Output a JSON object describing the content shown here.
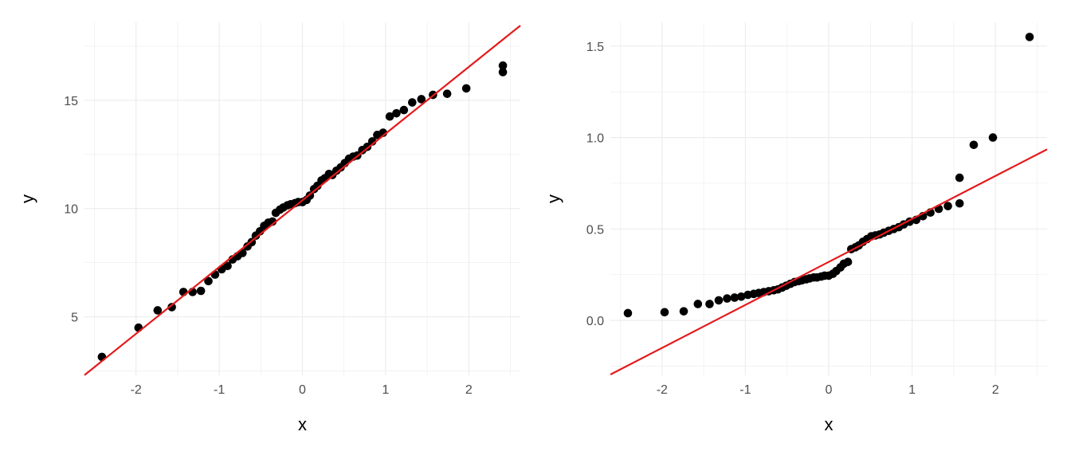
{
  "chart_data": [
    {
      "type": "scatter",
      "title": "",
      "xlabel": "x",
      "ylabel": "y",
      "xlim": [
        -2.62,
        2.62
      ],
      "ylim": [
        2.3,
        18.6
      ],
      "xticks": [
        -2,
        -1,
        0,
        1,
        2
      ],
      "xtick_labels": [
        "-2",
        "-1",
        "0",
        "1",
        "2"
      ],
      "yticks": [
        5,
        10,
        15
      ],
      "ytick_labels": [
        "5",
        "10",
        "15"
      ],
      "grid": true,
      "legend": "none",
      "point_color": "#000000",
      "line_color": "#e41a1c",
      "reference_line": {
        "intercept": 10.38,
        "slope": 3.08
      },
      "points": [
        [
          -2.41,
          3.15
        ],
        [
          -1.97,
          4.5
        ],
        [
          -1.74,
          5.3
        ],
        [
          -1.57,
          5.45
        ],
        [
          -1.43,
          6.15
        ],
        [
          -1.32,
          6.15
        ],
        [
          -1.22,
          6.2
        ],
        [
          -1.13,
          6.65
        ],
        [
          -1.05,
          6.95
        ],
        [
          -0.97,
          7.2
        ],
        [
          -0.9,
          7.35
        ],
        [
          -0.84,
          7.65
        ],
        [
          -0.78,
          7.8
        ],
        [
          -0.72,
          7.95
        ],
        [
          -0.66,
          8.25
        ],
        [
          -0.61,
          8.45
        ],
        [
          -0.56,
          8.75
        ],
        [
          -0.51,
          8.95
        ],
        [
          -0.46,
          9.2
        ],
        [
          -0.41,
          9.35
        ],
        [
          -0.36,
          9.4
        ],
        [
          -0.32,
          9.8
        ],
        [
          -0.27,
          9.95
        ],
        [
          -0.23,
          10.05
        ],
        [
          -0.18,
          10.15
        ],
        [
          -0.14,
          10.2
        ],
        [
          -0.09,
          10.25
        ],
        [
          -0.05,
          10.3
        ],
        [
          0.0,
          10.3
        ],
        [
          0.05,
          10.4
        ],
        [
          0.09,
          10.6
        ],
        [
          0.14,
          10.9
        ],
        [
          0.18,
          11.05
        ],
        [
          0.23,
          11.3
        ],
        [
          0.27,
          11.4
        ],
        [
          0.32,
          11.6
        ],
        [
          0.36,
          11.55
        ],
        [
          0.41,
          11.75
        ],
        [
          0.46,
          11.9
        ],
        [
          0.51,
          12.1
        ],
        [
          0.56,
          12.3
        ],
        [
          0.61,
          12.4
        ],
        [
          0.66,
          12.45
        ],
        [
          0.72,
          12.7
        ],
        [
          0.78,
          12.85
        ],
        [
          0.84,
          13.1
        ],
        [
          0.9,
          13.4
        ],
        [
          0.97,
          13.5
        ],
        [
          1.05,
          14.25
        ],
        [
          1.13,
          14.4
        ],
        [
          1.22,
          14.55
        ],
        [
          1.32,
          14.9
        ],
        [
          1.43,
          15.05
        ],
        [
          1.57,
          15.25
        ],
        [
          1.74,
          15.3
        ],
        [
          1.97,
          15.55
        ],
        [
          2.41,
          16.3
        ],
        [
          2.41,
          16.6
        ]
      ]
    },
    {
      "type": "scatter",
      "title": "",
      "xlabel": "x",
      "ylabel": "y",
      "xlim": [
        -2.62,
        2.62
      ],
      "ylim": [
        -0.3,
        1.63
      ],
      "xticks": [
        -2,
        -1,
        0,
        1,
        2
      ],
      "xtick_labels": [
        "-2",
        "-1",
        "0",
        "1",
        "2"
      ],
      "yticks": [
        0.0,
        0.5,
        1.0,
        1.5
      ],
      "ytick_labels": [
        "0.0",
        "0.5",
        "1.0",
        "1.5"
      ],
      "grid": true,
      "legend": "none",
      "point_color": "#000000",
      "line_color": "#e41a1c",
      "reference_line": {
        "intercept": 0.32,
        "slope": 0.235
      },
      "points": [
        [
          -2.41,
          0.04
        ],
        [
          -1.97,
          0.045
        ],
        [
          -1.74,
          0.05
        ],
        [
          -1.57,
          0.09
        ],
        [
          -1.43,
          0.09
        ],
        [
          -1.32,
          0.11
        ],
        [
          -1.22,
          0.12
        ],
        [
          -1.13,
          0.125
        ],
        [
          -1.05,
          0.13
        ],
        [
          -0.97,
          0.14
        ],
        [
          -0.9,
          0.145
        ],
        [
          -0.84,
          0.15
        ],
        [
          -0.78,
          0.155
        ],
        [
          -0.72,
          0.16
        ],
        [
          -0.66,
          0.165
        ],
        [
          -0.61,
          0.17
        ],
        [
          -0.56,
          0.18
        ],
        [
          -0.51,
          0.19
        ],
        [
          -0.46,
          0.2
        ],
        [
          -0.41,
          0.21
        ],
        [
          -0.36,
          0.215
        ],
        [
          -0.32,
          0.22
        ],
        [
          -0.27,
          0.225
        ],
        [
          -0.23,
          0.23
        ],
        [
          -0.18,
          0.235
        ],
        [
          -0.14,
          0.235
        ],
        [
          -0.09,
          0.24
        ],
        [
          -0.05,
          0.245
        ],
        [
          0.0,
          0.245
        ],
        [
          0.05,
          0.255
        ],
        [
          0.09,
          0.27
        ],
        [
          0.14,
          0.29
        ],
        [
          0.18,
          0.31
        ],
        [
          0.23,
          0.32
        ],
        [
          0.27,
          0.39
        ],
        [
          0.32,
          0.4
        ],
        [
          0.36,
          0.41
        ],
        [
          0.41,
          0.43
        ],
        [
          0.46,
          0.445
        ],
        [
          0.51,
          0.46
        ],
        [
          0.56,
          0.465
        ],
        [
          0.61,
          0.47
        ],
        [
          0.66,
          0.48
        ],
        [
          0.72,
          0.49
        ],
        [
          0.78,
          0.5
        ],
        [
          0.84,
          0.51
        ],
        [
          0.9,
          0.525
        ],
        [
          0.97,
          0.54
        ],
        [
          1.05,
          0.55
        ],
        [
          1.13,
          0.57
        ],
        [
          1.22,
          0.59
        ],
        [
          1.32,
          0.61
        ],
        [
          1.43,
          0.625
        ],
        [
          1.57,
          0.64
        ],
        [
          1.57,
          0.78
        ],
        [
          1.74,
          0.96
        ],
        [
          1.97,
          1.0
        ],
        [
          2.41,
          1.55
        ]
      ]
    }
  ]
}
